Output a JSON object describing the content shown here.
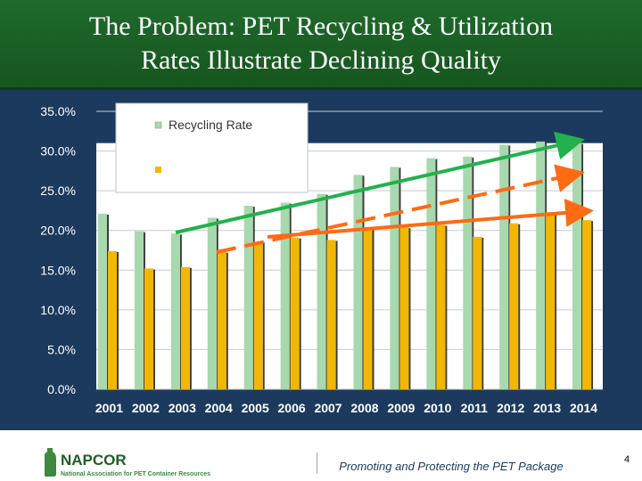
{
  "slide": {
    "title_line1": "The Problem:  PET Recycling & Utilization",
    "title_line2": "Rates Illustrate Declining Quality",
    "slogan": "Promoting and Protecting the PET Package",
    "page_number": "4",
    "logo_text": "NAPCOR",
    "logo_subtext": "National Association for PET Container Resources"
  },
  "colors": {
    "title_bg": "#1f6a2c",
    "chart_bg": "#1b3a5e",
    "recycling_bar": "#a8d8ad",
    "second_bar": "#f2b705",
    "green_arrow": "#22b14c",
    "orange_arrow": "#ff6a13"
  },
  "chart_data": {
    "type": "bar",
    "categories": [
      "2001",
      "2002",
      "2003",
      "2004",
      "2005",
      "2006",
      "2007",
      "2008",
      "2009",
      "2010",
      "2011",
      "2012",
      "2013",
      "2014"
    ],
    "series": [
      {
        "name": "Recycling Rate",
        "values": [
          22.1,
          19.9,
          19.6,
          21.6,
          23.1,
          23.5,
          24.6,
          27.0,
          28.0,
          29.1,
          29.3,
          30.8,
          31.2,
          31.0
        ]
      },
      {
        "name": "",
        "values": [
          17.4,
          15.2,
          15.4,
          17.3,
          18.6,
          19.1,
          18.8,
          20.4,
          20.4,
          20.7,
          19.2,
          20.9,
          22.3,
          21.3
        ]
      }
    ],
    "ylim": [
      0,
      35
    ],
    "yticks": [
      "0.0%",
      "5.0%",
      "10.0%",
      "15.0%",
      "20.0%",
      "25.0%",
      "30.0%",
      "35.0%"
    ],
    "grid": true,
    "legend": "top-left"
  }
}
